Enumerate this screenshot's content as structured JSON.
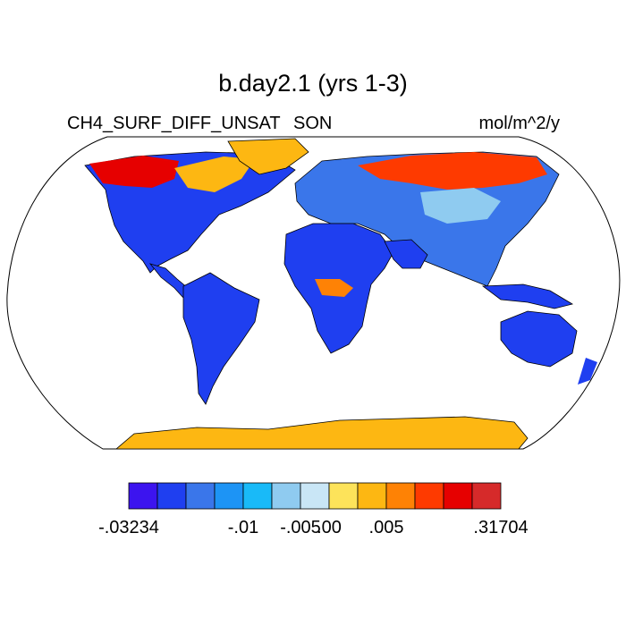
{
  "title": "b.day2.1 (yrs 1-3)",
  "left_string": "CH4_SURF_DIFF_UNSAT",
  "center_string": "SON",
  "right_string": "mol/m^2/y",
  "chart_data": {
    "type": "heatmap",
    "title": "b.day2.1 (yrs 1-3)",
    "variable": "CH4_SURF_DIFF_UNSAT",
    "season": "SON",
    "units": "mol/m^2/y",
    "projection": "Robinson global map",
    "colorbar": {
      "colors": [
        "#3c14ef",
        "#1f3ff0",
        "#3a76ea",
        "#1d94f5",
        "#19baf8",
        "#8fcbf0",
        "#c9e6f6",
        "#fde35a",
        "#fdb712",
        "#fe8205",
        "#fe3a00",
        "#e60000",
        "#d62a2a"
      ],
      "tick_labels": [
        {
          "label": "-.03234",
          "boundary_index": 0
        },
        {
          "label": "-.01",
          "boundary_index": 4
        },
        {
          "label": "-.005",
          "boundary_index": 6
        },
        {
          "label": ".00",
          "boundary_index": 7
        },
        {
          "label": ".005",
          "boundary_index": 9
        },
        {
          "label": ".31704",
          "boundary_index": 13
        }
      ]
    },
    "regions": [
      {
        "name": "Arctic Canada / Greenland margin",
        "category": "high positive (.005 to .31704)",
        "color": "#e60000"
      },
      {
        "name": "Siberia",
        "category": "high positive (.005 to .31704)",
        "color": "#fe3a00"
      },
      {
        "name": "Antarctica coast",
        "category": "small positive (.00 to .005)",
        "color": "#fdb712"
      },
      {
        "name": "North America",
        "category": "negative (-.03234 to -.005)",
        "color": "#1f3ff0"
      },
      {
        "name": "South America",
        "category": "negative (-.03234 to -.005)",
        "color": "#1f3ff0"
      },
      {
        "name": "Africa",
        "category": "negative (-.03234 to -.005)",
        "color": "#1f3ff0"
      },
      {
        "name": "Europe / Asia",
        "category": "negative (-.01 to 0)",
        "color": "#3a76ea"
      },
      {
        "name": "Australia",
        "category": "negative (-.03234 to -.005)",
        "color": "#1f3ff0"
      }
    ]
  }
}
